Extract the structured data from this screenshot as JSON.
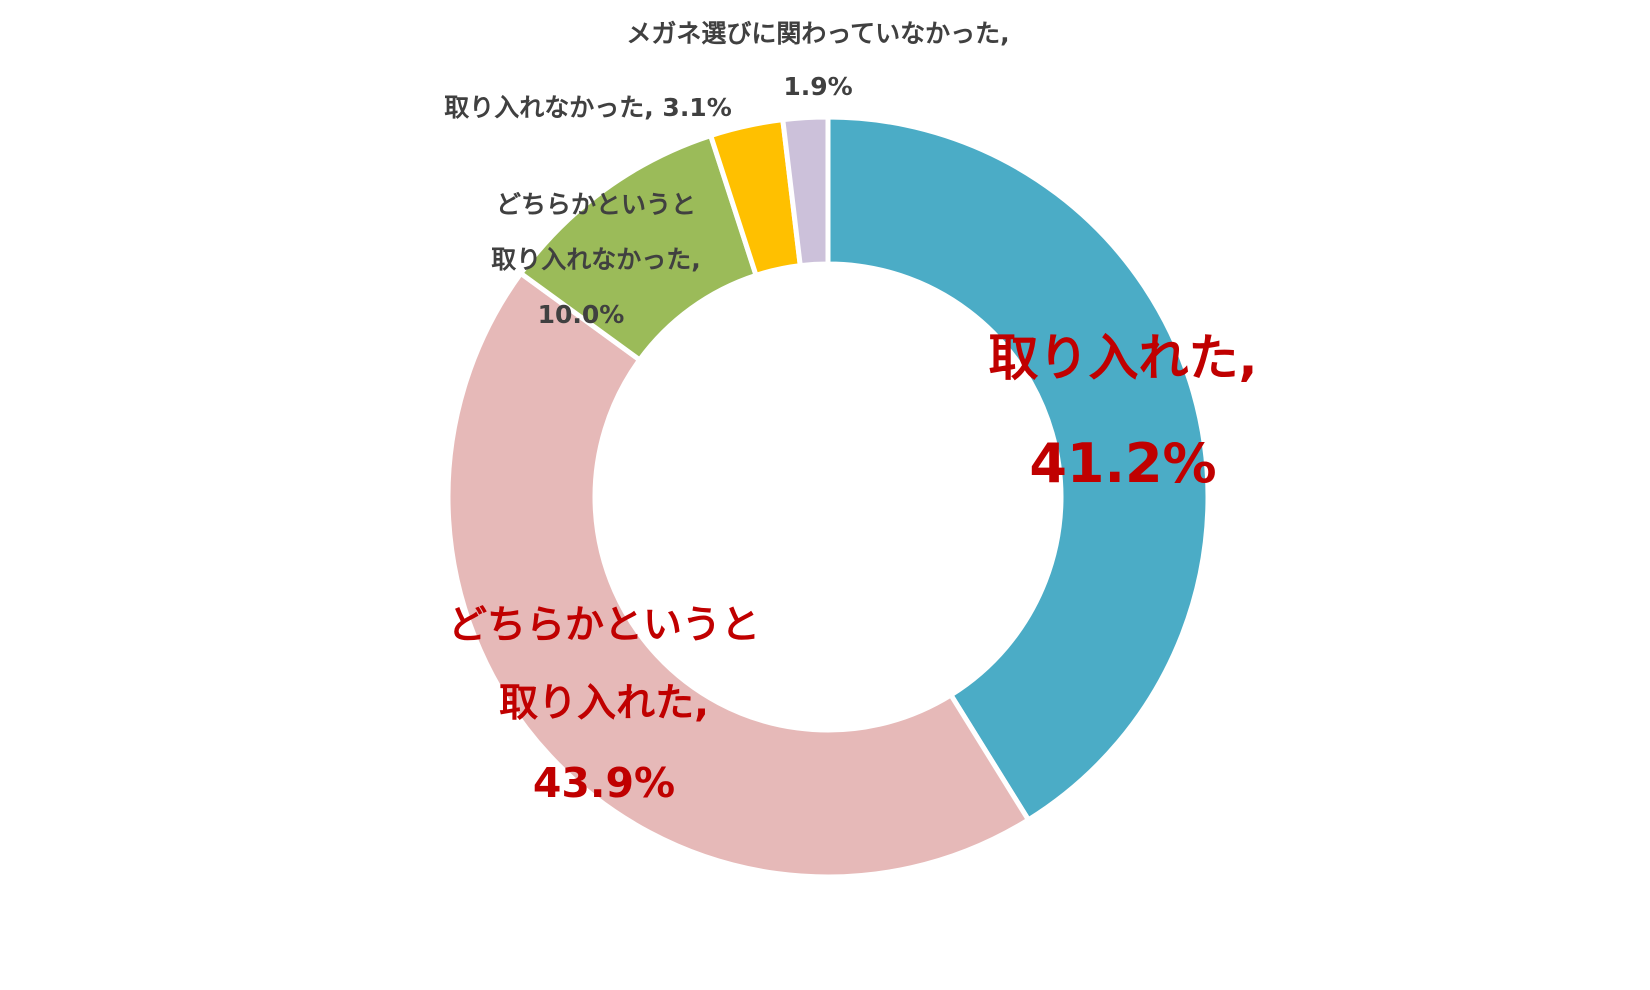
{
  "chart_data": {
    "type": "pie",
    "style": "donut",
    "title": "",
    "start": "12 o'clock",
    "direction": "clockwise",
    "slices": [
      {
        "label": "取り入れた",
        "value": 41.2,
        "value_text": "41.2%",
        "color": "#4bacc6"
      },
      {
        "label": "どちらかというと取り入れた",
        "value": 43.9,
        "value_text": "43.9%",
        "color": "#e6b9b8"
      },
      {
        "label": "どちらかというと取り入れなかった",
        "value": 10.0,
        "value_text": "10.0%",
        "color": "#9bbb59"
      },
      {
        "label": "取り入れなかった",
        "value": 3.1,
        "value_text": "3.1%",
        "color": "#ffc000"
      },
      {
        "label": "メガネ選びに関わっていなかった",
        "value": 1.9,
        "value_text": "1.9%",
        "color": "#ccc1da"
      }
    ],
    "data_labels": {
      "slice0": {
        "line1": "取り入れた,",
        "line2": "41.2%"
      },
      "slice1": {
        "line1": "どちらかというと",
        "line2": "取り入れた,",
        "line3": "43.9%"
      },
      "slice2": {
        "line1": "どちらかというと",
        "line2": "取り入れなかった,",
        "line3": "10.0%"
      },
      "slice3": {
        "line1": "取り入れなかった, 3.1%"
      },
      "slice4": {
        "line1": "メガネ選びに関わっていなかった,",
        "line2": "1.9%"
      }
    },
    "label_colors": {
      "highlight": "#c00000",
      "normal": "#404040"
    }
  }
}
